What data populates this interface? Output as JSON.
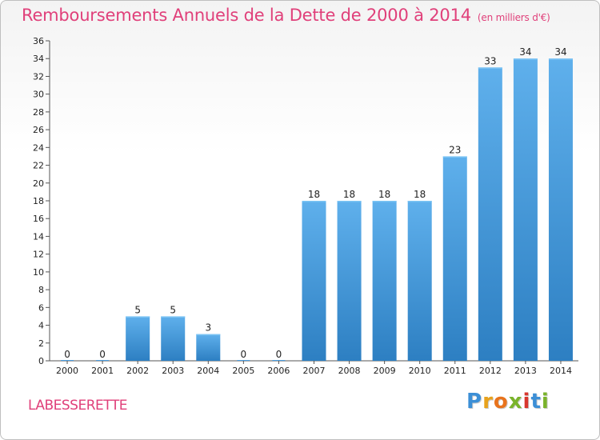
{
  "header": {
    "title": "Remboursements Annuels de la Dette de 2000 à 2014",
    "unit": "(en milliers d'€)"
  },
  "commune": "LABESSERETTE",
  "logo": {
    "text": "Proxiti",
    "letter_colors": [
      "#3c8fd6",
      "#e8a21c",
      "#e8731c",
      "#7ab32b",
      "#d8362d",
      "#3c8fd6",
      "#7ab32b"
    ]
  },
  "chart_data": {
    "type": "bar",
    "categories": [
      "2000",
      "2001",
      "2002",
      "2003",
      "2004",
      "2005",
      "2006",
      "2007",
      "2008",
      "2009",
      "2010",
      "2011",
      "2012",
      "2013",
      "2014"
    ],
    "values": [
      0,
      0,
      5,
      5,
      3,
      0,
      0,
      18,
      18,
      18,
      18,
      23,
      33,
      34,
      34
    ],
    "data_labels": [
      "0",
      "0",
      "5",
      "5",
      "3",
      "0",
      "0",
      "18",
      "18",
      "18",
      "18",
      "23",
      "33",
      "34",
      "34"
    ],
    "title": "Remboursements Annuels de la Dette de 2000 à 2014",
    "xlabel": "",
    "ylabel": "",
    "ylim": [
      0,
      36
    ],
    "yticks": [
      0,
      2,
      4,
      6,
      8,
      10,
      12,
      14,
      16,
      18,
      20,
      22,
      24,
      26,
      28,
      30,
      32,
      34,
      36
    ],
    "grid": false,
    "bar_color": "#4a9de0"
  }
}
